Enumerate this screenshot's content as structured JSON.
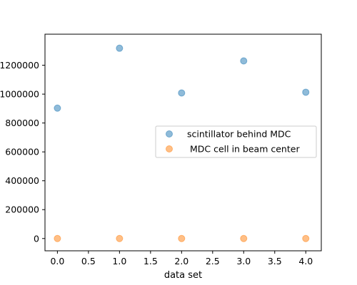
{
  "chart_data": {
    "type": "scatter",
    "title": "",
    "xlabel": "data set",
    "ylabel": "",
    "xlim": [
      -0.2,
      4.25
    ],
    "ylim": [
      -85000,
      1415000
    ],
    "x_ticks": [
      0.0,
      0.5,
      1.0,
      1.5,
      2.0,
      2.5,
      3.0,
      3.5,
      4.0
    ],
    "x_tick_labels": [
      "0.0",
      "0.5",
      "1.0",
      "1.5",
      "2.0",
      "2.5",
      "3.0",
      "3.5",
      "4.0"
    ],
    "y_ticks": [
      0,
      200000,
      400000,
      600000,
      800000,
      1000000,
      1200000
    ],
    "y_tick_labels": [
      "0",
      "200000",
      "400000",
      "600000",
      "800000",
      "1000000",
      "1200000"
    ],
    "grid": false,
    "legend_position": "center-right",
    "series": [
      {
        "name": "scintillator behind MDC",
        "color": "#1f77b4",
        "x": [
          0,
          1,
          2,
          3,
          4
        ],
        "y": [
          903000,
          1318000,
          1008000,
          1230000,
          1013000
        ]
      },
      {
        "name": " MDC cell in beam center",
        "color": "#ff7f0e",
        "x": [
          0,
          1,
          2,
          3,
          4
        ],
        "y": [
          0,
          0,
          0,
          0,
          0
        ]
      }
    ]
  }
}
